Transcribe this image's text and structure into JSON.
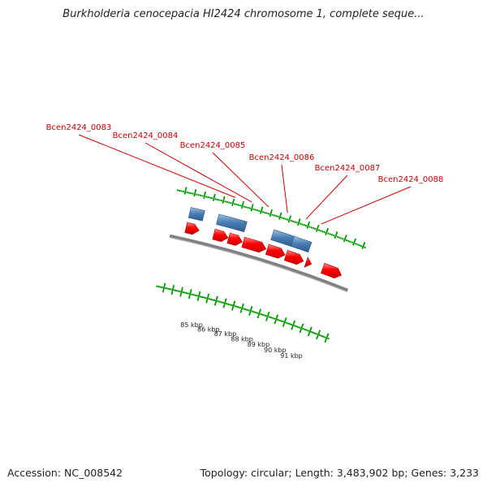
{
  "title": "Burkholderia cenocepacia HI2424 chromosome 1, complete seque...",
  "footer": {
    "accession": "Accession: NC_008542",
    "stats": "Topology: circular; Length: 3,483,902 bp; Genes: 3,233"
  },
  "colors": {
    "forward_gene": "#ff0000",
    "reverse_gene": "#4a7fb5",
    "backbone": "#808080",
    "ticks": "#009900",
    "gene_label": "#cc0000"
  },
  "genes": [
    {
      "id": "g1",
      "strand": "reverse",
      "start_kb": 83.46,
      "end_kb": 84.2
    },
    {
      "id": "g2",
      "strand": "forward",
      "start_kb": 83.45,
      "end_kb": 84.15
    },
    {
      "id": "g3",
      "strand": "reverse",
      "start_kb": 84.95,
      "end_kb": 86.45
    },
    {
      "id": "g4",
      "strand": "forward",
      "start_kb": 84.95,
      "end_kb": 85.72
    },
    {
      "id": "g5",
      "strand": "forward",
      "start_kb": 85.75,
      "end_kb": 86.5
    },
    {
      "id": "g6",
      "strand": "forward",
      "start_kb": 86.55,
      "end_kb": 87.8
    },
    {
      "id": "g7",
      "strand": "reverse",
      "start_kb": 87.9,
      "end_kb": 89.0
    },
    {
      "id": "g8",
      "strand": "reverse",
      "start_kb": 89.0,
      "end_kb": 89.95
    },
    {
      "id": "g9",
      "strand": "forward",
      "start_kb": 87.87,
      "end_kb": 88.85
    },
    {
      "id": "g10",
      "strand": "forward",
      "start_kb": 88.9,
      "end_kb": 89.87
    },
    {
      "id": "g11",
      "strand": "forward",
      "start_kb": 90.02,
      "end_kb": 90.32
    },
    {
      "id": "g12",
      "strand": "forward",
      "start_kb": 90.95,
      "end_kb": 92.0
    }
  ],
  "gene_labels": [
    {
      "text": "Bcen2424_0083",
      "kb": 85.55
    },
    {
      "text": "Bcen2424_0084",
      "kb": 86.4
    },
    {
      "text": "Bcen2424_0085",
      "kb": 87.3
    },
    {
      "text": "Bcen2424_0086",
      "kb": 88.3
    },
    {
      "text": "Bcen2424_0087",
      "kb": 89.3
    },
    {
      "text": "Bcen2424_0088",
      "kb": 90.1
    }
  ],
  "tick_labels": [
    {
      "text": "85 kbp",
      "kb": 85
    },
    {
      "text": "86 kbp",
      "kb": 86
    },
    {
      "text": "87 kbp",
      "kb": 87
    },
    {
      "text": "88 kbp",
      "kb": 88
    },
    {
      "text": "89 kbp",
      "kb": 89
    },
    {
      "text": "90 kbp",
      "kb": 90
    },
    {
      "text": "91 kbp",
      "kb": 91
    }
  ]
}
